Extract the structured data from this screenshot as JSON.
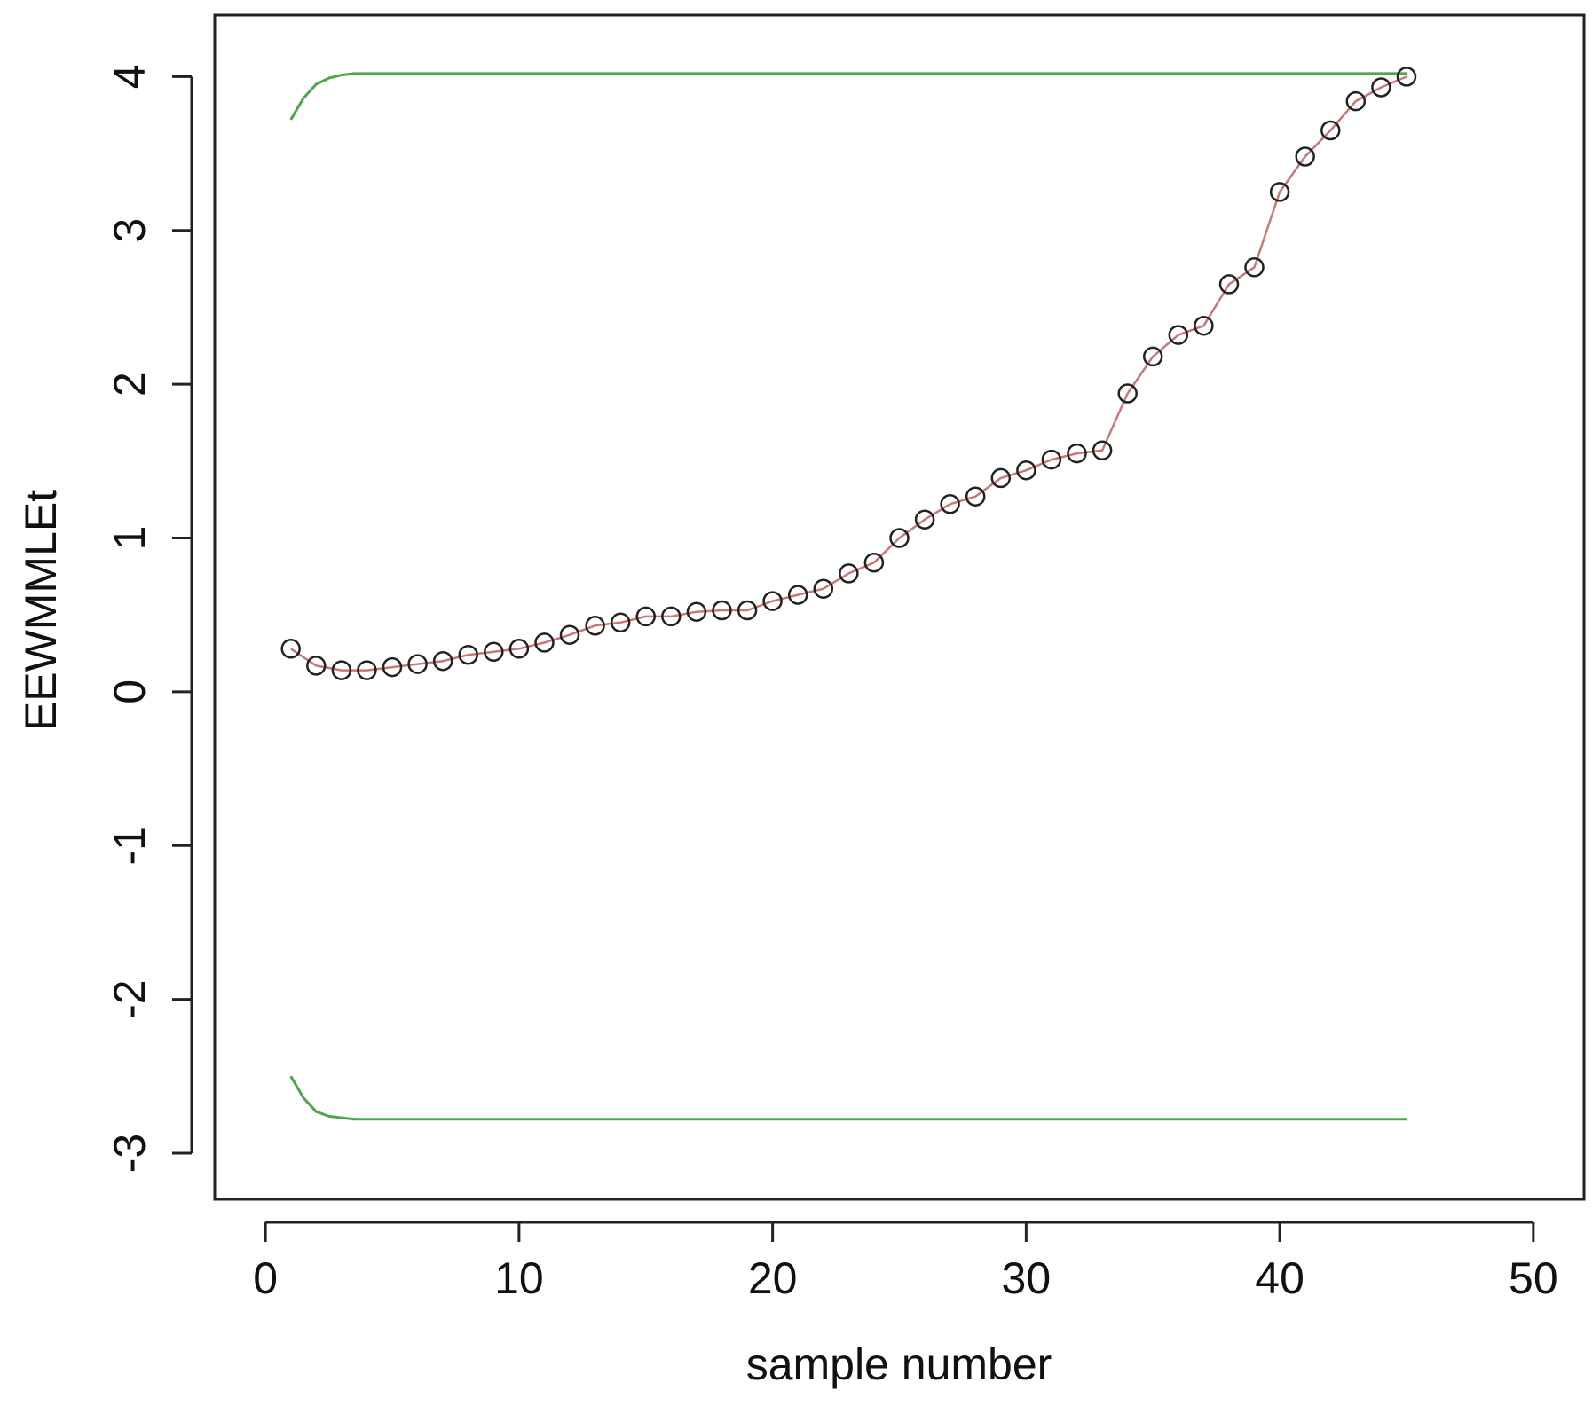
{
  "chart_data": {
    "type": "line",
    "title": "",
    "xlabel": "sample number",
    "ylabel": "EEWMMLEt",
    "xlim": [
      -2,
      52
    ],
    "ylim": [
      -3.3,
      4.4
    ],
    "xticks": [
      0,
      10,
      20,
      30,
      40,
      50
    ],
    "yticks": [
      -3,
      -2,
      -1,
      0,
      1,
      2,
      3,
      4
    ],
    "grid": false,
    "legend": "none",
    "series": [
      {
        "role": "statistic",
        "color": "#c87878",
        "marker": "open-circle",
        "marker_color": "#222222",
        "x": [
          1,
          2,
          3,
          4,
          5,
          6,
          7,
          8,
          9,
          10,
          11,
          12,
          13,
          14,
          15,
          16,
          17,
          18,
          19,
          20,
          21,
          22,
          23,
          24,
          25,
          26,
          27,
          28,
          29,
          30,
          31,
          32,
          33,
          34,
          35,
          36,
          37,
          38,
          39,
          40,
          41,
          42,
          43,
          44,
          45
        ],
        "y": [
          0.28,
          0.17,
          0.14,
          0.14,
          0.16,
          0.18,
          0.2,
          0.24,
          0.26,
          0.28,
          0.32,
          0.37,
          0.43,
          0.45,
          0.49,
          0.49,
          0.52,
          0.53,
          0.53,
          0.59,
          0.63,
          0.67,
          0.77,
          0.84,
          1.0,
          1.12,
          1.22,
          1.27,
          1.39,
          1.44,
          1.51,
          1.55,
          1.57,
          1.94,
          2.18,
          2.32,
          2.38,
          2.65,
          2.76,
          3.25,
          3.48,
          3.65,
          3.84,
          3.93,
          4.0
        ]
      },
      {
        "role": "upper-limit",
        "color": "#4ca64c",
        "x": [
          1,
          1.5,
          2,
          2.5,
          3,
          3.5,
          4,
          45
        ],
        "y": [
          3.72,
          3.86,
          3.95,
          3.99,
          4.01,
          4.02,
          4.02,
          4.02
        ]
      },
      {
        "role": "lower-limit",
        "color": "#4ca64c",
        "x": [
          1,
          1.5,
          2,
          2.5,
          3,
          3.5,
          4,
          45
        ],
        "y": [
          -2.5,
          -2.64,
          -2.73,
          -2.76,
          -2.77,
          -2.78,
          -2.78,
          -2.78
        ]
      }
    ]
  }
}
